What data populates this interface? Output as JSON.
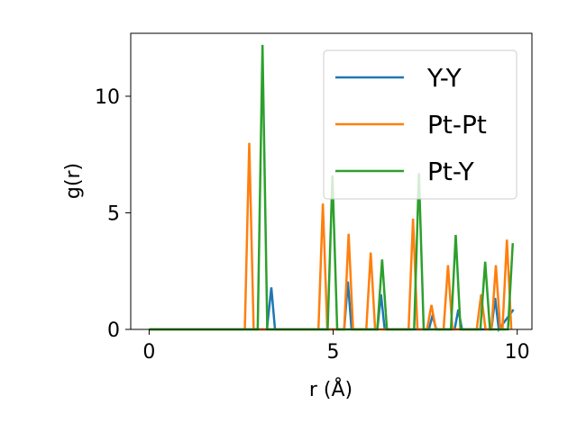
{
  "chart_data": {
    "type": "line",
    "xlabel": "r (Å)",
    "ylabel": "g(r)",
    "xlim": [
      -0.5,
      10.4
    ],
    "ylim": [
      0,
      12.7
    ],
    "xticks": [
      0,
      5,
      10
    ],
    "yticks": [
      0,
      5,
      10
    ],
    "grid": false,
    "legend_position": "top-right",
    "series": [
      {
        "name": "Y-Y",
        "color": "#1f77b4",
        "points": [
          [
            0,
            0
          ],
          [
            3.2,
            0
          ],
          [
            3.32,
            1.8
          ],
          [
            3.42,
            0
          ],
          [
            5.3,
            0
          ],
          [
            5.4,
            2.05
          ],
          [
            5.5,
            0
          ],
          [
            6.2,
            0
          ],
          [
            6.3,
            1.5
          ],
          [
            6.4,
            0
          ],
          [
            7.6,
            0
          ],
          [
            7.7,
            0.6
          ],
          [
            7.8,
            0
          ],
          [
            8.3,
            0
          ],
          [
            8.4,
            0.85
          ],
          [
            8.5,
            0
          ],
          [
            9.3,
            0
          ],
          [
            9.4,
            1.35
          ],
          [
            9.5,
            0
          ],
          [
            9.9,
            0.85
          ]
        ]
      },
      {
        "name": "Pt-Pt",
        "color": "#ff7f0e",
        "points": [
          [
            0,
            0
          ],
          [
            2.6,
            0
          ],
          [
            2.72,
            8.0
          ],
          [
            2.84,
            0
          ],
          [
            4.6,
            0
          ],
          [
            4.72,
            5.4
          ],
          [
            4.84,
            0
          ],
          [
            5.3,
            0
          ],
          [
            5.42,
            4.1
          ],
          [
            5.54,
            0
          ],
          [
            5.9,
            0
          ],
          [
            6.02,
            3.3
          ],
          [
            6.14,
            0
          ],
          [
            7.05,
            0
          ],
          [
            7.17,
            4.75
          ],
          [
            7.29,
            0
          ],
          [
            7.55,
            0
          ],
          [
            7.67,
            1.05
          ],
          [
            7.79,
            0
          ],
          [
            8.0,
            0
          ],
          [
            8.12,
            2.75
          ],
          [
            8.24,
            0
          ],
          [
            8.9,
            0
          ],
          [
            9.02,
            1.5
          ],
          [
            9.14,
            0
          ],
          [
            9.3,
            0
          ],
          [
            9.42,
            2.75
          ],
          [
            9.54,
            0
          ],
          [
            9.6,
            0
          ],
          [
            9.72,
            3.85
          ],
          [
            9.84,
            0
          ]
        ]
      },
      {
        "name": "Pt-Y",
        "color": "#2ca02c",
        "points": [
          [
            0,
            0
          ],
          [
            2.95,
            0
          ],
          [
            3.08,
            12.2
          ],
          [
            3.21,
            0
          ],
          [
            4.85,
            0
          ],
          [
            4.98,
            6.6
          ],
          [
            5.11,
            0
          ],
          [
            6.2,
            0
          ],
          [
            6.33,
            3.0
          ],
          [
            6.46,
            0
          ],
          [
            7.2,
            0
          ],
          [
            7.33,
            6.7
          ],
          [
            7.46,
            0
          ],
          [
            8.2,
            0
          ],
          [
            8.33,
            4.05
          ],
          [
            8.46,
            0
          ],
          [
            9.0,
            0
          ],
          [
            9.13,
            2.9
          ],
          [
            9.26,
            0
          ],
          [
            9.75,
            0
          ],
          [
            9.88,
            3.7
          ]
        ]
      }
    ]
  }
}
